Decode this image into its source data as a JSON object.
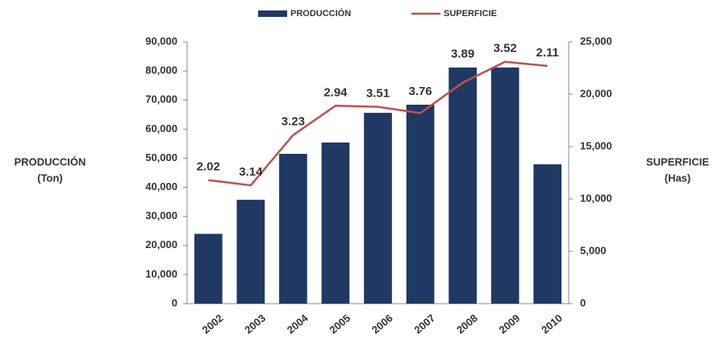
{
  "chart_data": {
    "type": "bar",
    "categories": [
      "2002",
      "2003",
      "2004",
      "2005",
      "2006",
      "2007",
      "2008",
      "2009",
      "2010"
    ],
    "series": [
      {
        "name": "PRODUCCIÓN",
        "color": "#1f3864",
        "values": [
          24000,
          35700,
          51500,
          55400,
          65600,
          68400,
          81200,
          81200,
          47900
        ]
      },
      {
        "name": "SUPERFICIE",
        "color": "#c0504d",
        "axis": "y2",
        "type": "line",
        "values": [
          11800,
          11300,
          16100,
          18900,
          18800,
          18200,
          21100,
          23100,
          22700
        ]
      }
    ],
    "annotations": [
      "2.02",
      "3.14",
      "3.23",
      "2.94",
      "3.51",
      "3.76",
      "3.89",
      "3.52",
      "2.11"
    ],
    "y_label": [
      "PRODUCCIÓN",
      "(Ton)"
    ],
    "y2_label": [
      "SUPERFICIE",
      "(Has)"
    ],
    "ylim": [
      0,
      90000
    ],
    "yticks": [
      0,
      {
        "value": 10000,
        "label": "10,000"
      },
      {
        "value": 20000,
        "label": "20,000"
      },
      {
        "value": 30000,
        "label": "30,000"
      },
      {
        "value": 40000,
        "label": "40,000"
      },
      {
        "value": 50000,
        "label": "50,000"
      },
      {
        "value": 60000,
        "label": "60,000"
      },
      {
        "value": 70000,
        "label": "70,000"
      },
      {
        "value": 80000,
        "label": "80,000"
      },
      {
        "value": 90000,
        "label": "90,000"
      }
    ],
    "y2lim": [
      0,
      25000
    ],
    "y2ticks": [
      0,
      {
        "value": 5000,
        "label": "5,000"
      },
      {
        "value": 10000,
        "label": "10,000"
      },
      {
        "value": 15000,
        "label": "15,000"
      },
      {
        "value": 20000,
        "label": "20,000"
      },
      {
        "value": 25000,
        "label": "25,000"
      }
    ],
    "legend": "top"
  }
}
